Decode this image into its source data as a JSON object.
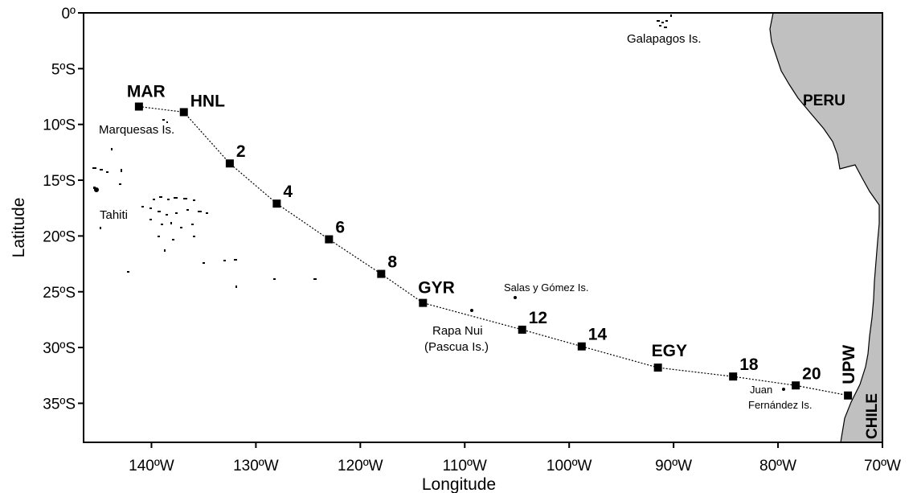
{
  "map": {
    "xlabel": "Longitude",
    "ylabel": "Latitude",
    "lon_range": [
      -146.5,
      -70
    ],
    "lat_range": [
      -38.5,
      0
    ],
    "x_ticks": [
      {
        "lon": -140,
        "label": "140ºW"
      },
      {
        "lon": -130,
        "label": "130ºW"
      },
      {
        "lon": -120,
        "label": "120ºW"
      },
      {
        "lon": -110,
        "label": "110ºW"
      },
      {
        "lon": -100,
        "label": "100ºW"
      },
      {
        "lon": -90,
        "label": "90ºW"
      },
      {
        "lon": -80,
        "label": "80ºW"
      },
      {
        "lon": -70,
        "label": "70ºW"
      }
    ],
    "y_ticks": [
      {
        "lat": 0,
        "label": "0º"
      },
      {
        "lat": -5,
        "label": "5ºS"
      },
      {
        "lat": -10,
        "label": "10ºS"
      },
      {
        "lat": -15,
        "label": "15ºS"
      },
      {
        "lat": -20,
        "label": "20ºS"
      },
      {
        "lat": -25,
        "label": "25ºS"
      },
      {
        "lat": -30,
        "label": "30ºS"
      },
      {
        "lat": -35,
        "label": "35ºS"
      }
    ],
    "countries": [
      {
        "name": "PERU"
      },
      {
        "name": "CHILE"
      }
    ],
    "places": [
      {
        "name": "Galapagos Is."
      },
      {
        "name": "Marquesas Is."
      },
      {
        "name": "Tahiti"
      },
      {
        "name": "Salas y Gómez Is."
      },
      {
        "name": "Rapa Nui"
      },
      {
        "name": "(Pascua Is.)"
      },
      {
        "name": "Juan"
      },
      {
        "name": "Fernández Is."
      }
    ],
    "land_color": "#c0c0c0",
    "station_color": "#000000"
  },
  "chart_data": {
    "type": "scatter",
    "xlabel": "Longitude",
    "ylabel": "Latitude",
    "xlim": [
      -146.5,
      -70
    ],
    "ylim": [
      -38.5,
      0
    ],
    "stations": [
      {
        "label": "MAR",
        "lon": -141.2,
        "lat": -8.4
      },
      {
        "label": "HNL",
        "lon": -136.9,
        "lat": -8.9
      },
      {
        "label": "2",
        "lon": -132.5,
        "lat": -13.5
      },
      {
        "label": "",
        "lon": -128.0,
        "lat": -17.1
      },
      {
        "label": "4",
        "lon": -128.0,
        "lat": -17.1
      },
      {
        "label": "6",
        "lon": -123.0,
        "lat": -20.3
      },
      {
        "label": "8",
        "lon": -118.0,
        "lat": -23.4
      },
      {
        "label": "GYR",
        "lon": -114.0,
        "lat": -26.0
      },
      {
        "label": "12",
        "lon": -104.5,
        "lat": -28.4
      },
      {
        "label": "14",
        "lon": -98.8,
        "lat": -29.9
      },
      {
        "label": "EGY",
        "lon": -91.5,
        "lat": -31.8
      },
      {
        "label": "18",
        "lon": -84.3,
        "lat": -32.6
      },
      {
        "label": "20",
        "lon": -78.3,
        "lat": -33.4
      },
      {
        "label": "UPW",
        "lon": -73.3,
        "lat": -34.3
      }
    ],
    "grid": false
  }
}
